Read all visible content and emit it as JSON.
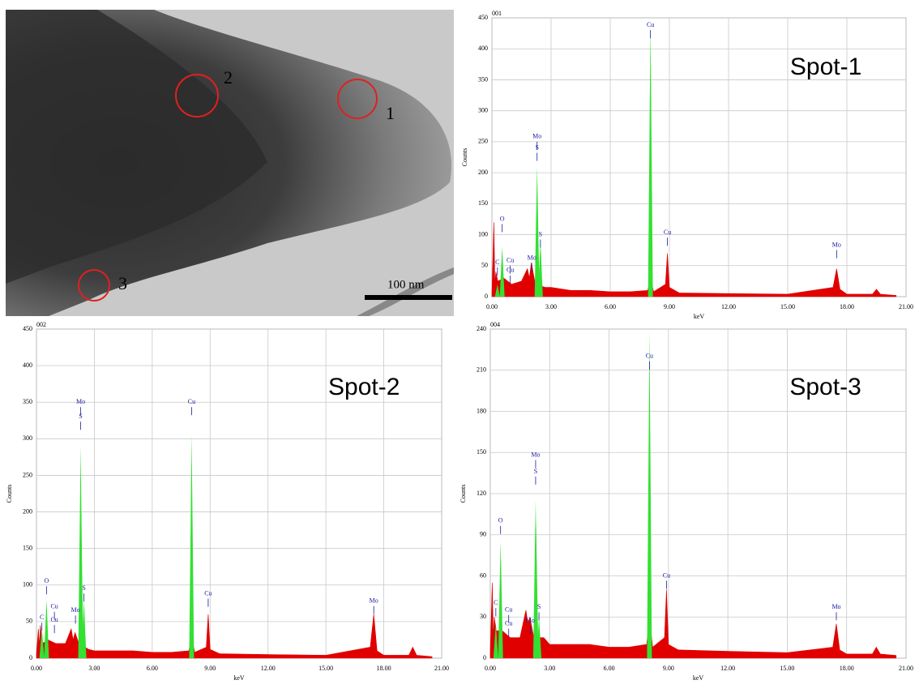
{
  "image": {
    "labels": [
      "1",
      "2",
      "3"
    ],
    "scale_bar": "100 nm"
  },
  "chart_data": [
    {
      "type": "spectrum",
      "panel": "001",
      "title": "Spot-1",
      "x_label": "keV",
      "y_label": "Counts",
      "color": "#e00000",
      "peak_color": "#33e033",
      "grid": true,
      "xlim": [
        0,
        21
      ],
      "ylim": [
        0,
        450
      ],
      "xticks": [
        {
          "value": 0,
          "label": "0.00"
        },
        {
          "value": 3,
          "label": "3.00"
        },
        {
          "value": 6,
          "label": "6.00"
        },
        {
          "value": 9,
          "label": "9.00"
        },
        {
          "value": 12,
          "label": "12.00"
        },
        {
          "value": 15,
          "label": "15.00"
        },
        {
          "value": 18,
          "label": "18.00"
        },
        {
          "value": 21,
          "label": "21.00"
        }
      ],
      "yticks": [
        0,
        50,
        100,
        150,
        200,
        250,
        300,
        350,
        400,
        450
      ],
      "x": [
        0,
        0.1,
        0.15,
        0.2,
        0.3,
        0.6,
        1.0,
        1.5,
        1.8,
        1.9,
        2.0,
        2.2,
        2.7,
        3.0,
        4,
        5,
        6,
        7,
        7.9,
        8.04,
        8.2,
        8.8,
        8.9,
        9.0,
        9.5,
        12,
        15,
        17.3,
        17.48,
        17.65,
        18,
        19.3,
        19.5,
        19.7,
        20.5
      ],
      "values": [
        5,
        120,
        20,
        40,
        25,
        30,
        20,
        25,
        45,
        30,
        55,
        20,
        15,
        15,
        10,
        10,
        8,
        8,
        10,
        30,
        8,
        20,
        70,
        15,
        6,
        5,
        4,
        15,
        45,
        12,
        4,
        4,
        12,
        4,
        2
      ],
      "peaks": {
        "x": [
          0.28,
          0.52,
          2.29,
          2.31,
          2.46,
          8.04
        ],
        "values": [
          20,
          80,
          210,
          120,
          90,
          440
        ]
      },
      "annotations": [
        {
          "text": "C",
          "x": 0.28,
          "y": 55
        },
        {
          "text": "O",
          "x": 0.52,
          "y": 125
        },
        {
          "text": "Cu",
          "x": 0.93,
          "y": 58
        },
        {
          "text": "Cu",
          "x": 0.93,
          "y": 42
        },
        {
          "text": "Mo",
          "x": 2.02,
          "y": 62
        },
        {
          "text": "Mo",
          "x": 2.29,
          "y": 258
        },
        {
          "text": "S",
          "x": 2.29,
          "y": 240
        },
        {
          "text": "S",
          "x": 2.46,
          "y": 100
        },
        {
          "text": "Cu",
          "x": 8.04,
          "y": 438
        },
        {
          "text": "Cu",
          "x": 8.9,
          "y": 103
        },
        {
          "text": "Mo",
          "x": 17.48,
          "y": 83
        }
      ]
    },
    {
      "type": "spectrum",
      "panel": "002",
      "title": "Spot-2",
      "x_label": "keV",
      "y_label": "Counts",
      "color": "#e00000",
      "peak_color": "#33e033",
      "grid": true,
      "xlim": [
        0,
        21
      ],
      "ylim": [
        0,
        450
      ],
      "xticks": [
        {
          "value": 0,
          "label": "0.00"
        },
        {
          "value": 3,
          "label": "3.00"
        },
        {
          "value": 6,
          "label": "6.00"
        },
        {
          "value": 9,
          "label": "9.00"
        },
        {
          "value": 12,
          "label": "12.00"
        },
        {
          "value": 15,
          "label": "15.00"
        },
        {
          "value": 18,
          "label": "18.00"
        },
        {
          "value": 21,
          "label": "21.00"
        }
      ],
      "yticks": [
        0,
        50,
        100,
        150,
        200,
        250,
        300,
        350,
        400,
        450
      ],
      "x": [
        0,
        0.1,
        0.15,
        0.2,
        0.3,
        0.6,
        1.0,
        1.5,
        1.8,
        1.9,
        2.0,
        2.2,
        2.7,
        3.0,
        4,
        5,
        6,
        7,
        7.9,
        8.04,
        8.2,
        8.8,
        8.9,
        9.0,
        9.5,
        12,
        15,
        17.3,
        17.48,
        17.65,
        18,
        19.3,
        19.5,
        19.7,
        20.5
      ],
      "values": [
        5,
        40,
        15,
        45,
        20,
        25,
        20,
        20,
        40,
        25,
        35,
        20,
        12,
        10,
        10,
        10,
        8,
        8,
        10,
        30,
        8,
        15,
        60,
        12,
        6,
        5,
        4,
        15,
        60,
        10,
        4,
        4,
        15,
        4,
        2
      ],
      "peaks": {
        "x": [
          0.28,
          0.52,
          2.29,
          2.31,
          2.46,
          8.04
        ],
        "values": [
          40,
          80,
          290,
          200,
          80,
          305
        ]
      },
      "annotations": [
        {
          "text": "C",
          "x": 0.28,
          "y": 55
        },
        {
          "text": "O",
          "x": 0.52,
          "y": 105
        },
        {
          "text": "Cu",
          "x": 0.93,
          "y": 70
        },
        {
          "text": "Cu",
          "x": 0.93,
          "y": 52
        },
        {
          "text": "Mo",
          "x": 2.02,
          "y": 65
        },
        {
          "text": "Mo",
          "x": 2.29,
          "y": 350
        },
        {
          "text": "S",
          "x": 2.29,
          "y": 330
        },
        {
          "text": "S",
          "x": 2.46,
          "y": 95
        },
        {
          "text": "Cu",
          "x": 8.04,
          "y": 350
        },
        {
          "text": "Cu",
          "x": 8.9,
          "y": 88
        },
        {
          "text": "Mo",
          "x": 17.48,
          "y": 78
        }
      ]
    },
    {
      "type": "spectrum",
      "panel": "004",
      "title": "Spot-3",
      "x_label": "keV",
      "y_label": "Counts",
      "color": "#e00000",
      "peak_color": "#33e033",
      "grid": true,
      "xlim": [
        0,
        21
      ],
      "ylim": [
        0,
        240
      ],
      "xticks": [
        {
          "value": 0,
          "label": "0.00"
        },
        {
          "value": 3,
          "label": "3.00"
        },
        {
          "value": 6,
          "label": "6.00"
        },
        {
          "value": 9,
          "label": "9.00"
        },
        {
          "value": 12,
          "label": "12.00"
        },
        {
          "value": 15,
          "label": "15.00"
        },
        {
          "value": 18,
          "label": "18.00"
        },
        {
          "value": 21,
          "label": "21.00"
        }
      ],
      "yticks": [
        0,
        30,
        60,
        90,
        120,
        150,
        180,
        210,
        240
      ],
      "x": [
        0,
        0.1,
        0.15,
        0.2,
        0.3,
        0.6,
        1.0,
        1.5,
        1.8,
        1.9,
        2.0,
        2.2,
        2.7,
        3.0,
        4,
        5,
        6,
        7,
        7.9,
        8.04,
        8.2,
        8.8,
        8.9,
        9.0,
        9.5,
        12,
        15,
        17.3,
        17.48,
        17.65,
        18,
        19.3,
        19.5,
        19.7,
        20.5
      ],
      "values": [
        5,
        55,
        15,
        30,
        20,
        20,
        15,
        15,
        35,
        25,
        30,
        15,
        15,
        10,
        10,
        10,
        8,
        8,
        10,
        30,
        8,
        15,
        50,
        10,
        6,
        5,
        4,
        8,
        25,
        6,
        3,
        3,
        8,
        3,
        2
      ],
      "peaks": {
        "x": [
          0.28,
          0.52,
          2.29,
          2.31,
          2.46,
          8.04
        ],
        "values": [
          25,
          85,
          115,
          100,
          30,
          238
        ]
      },
      "annotations": [
        {
          "text": "C",
          "x": 0.28,
          "y": 40
        },
        {
          "text": "O",
          "x": 0.52,
          "y": 100
        },
        {
          "text": "Cu",
          "x": 0.93,
          "y": 35
        },
        {
          "text": "Cu",
          "x": 0.93,
          "y": 25
        },
        {
          "text": "Mo",
          "x": 2.02,
          "y": 27
        },
        {
          "text": "Mo",
          "x": 2.29,
          "y": 148
        },
        {
          "text": "S",
          "x": 2.29,
          "y": 136
        },
        {
          "text": "S",
          "x": 2.46,
          "y": 37
        },
        {
          "text": "Cu",
          "x": 8.04,
          "y": 220
        },
        {
          "text": "Cu",
          "x": 8.9,
          "y": 60
        },
        {
          "text": "Mo",
          "x": 17.48,
          "y": 37
        }
      ]
    }
  ]
}
